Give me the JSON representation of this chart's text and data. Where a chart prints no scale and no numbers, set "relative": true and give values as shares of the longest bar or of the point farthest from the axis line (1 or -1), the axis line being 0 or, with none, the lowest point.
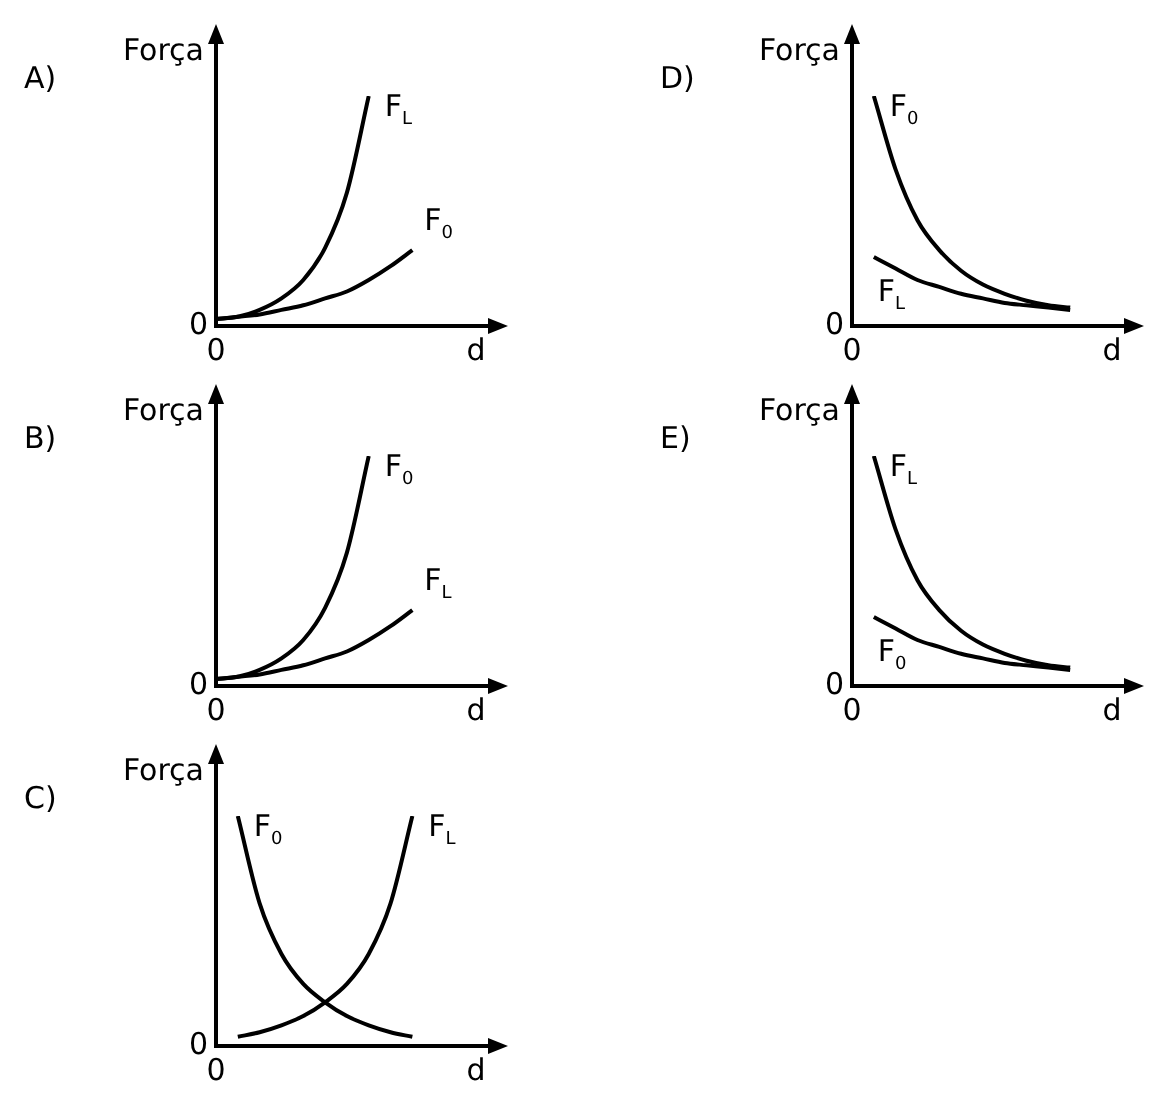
{
  "chart_data": [
    {
      "type": "line",
      "title": "A)",
      "ylabel": "Força",
      "xlabel": "d",
      "annotations": [
        "0",
        "0"
      ],
      "relative": true,
      "legend": false,
      "grid": false,
      "marker": "none",
      "categories": [
        null,
        null,
        null,
        null,
        null,
        null,
        null,
        null,
        null,
        null,
        null,
        null
      ],
      "series": [
        {
          "name": "F$_{L}$",
          "color": "#000000",
          "values": [
            0.03,
            0.04,
            0.07,
            0.12,
            0.2,
            0.34,
            0.58,
            1.0,
            null,
            null,
            null,
            null
          ]
        },
        {
          "name": "F$_{0}$",
          "color": "#000000",
          "values": [
            0.03,
            0.04,
            0.05,
            0.07,
            0.09,
            0.12,
            0.15,
            0.2,
            0.26,
            0.33,
            null,
            null
          ]
        }
      ]
    },
    {
      "type": "line",
      "title": "D)",
      "ylabel": "Força",
      "xlabel": "d",
      "annotations": [
        "0",
        "0"
      ],
      "relative": true,
      "legend": false,
      "grid": false,
      "marker": "none",
      "categories": [
        null,
        null,
        null,
        null,
        null,
        null,
        null,
        null,
        null,
        null,
        null,
        null
      ],
      "series": [
        {
          "name": "F$_{0}$",
          "color": "#000000",
          "values": [
            null,
            1.0,
            0.68,
            0.46,
            0.33,
            0.24,
            0.18,
            0.14,
            0.11,
            0.09,
            0.08,
            null
          ]
        },
        {
          "name": "F$_{L}$",
          "color": "#000000",
          "values": [
            null,
            0.3,
            0.25,
            0.2,
            0.17,
            0.14,
            0.12,
            0.1,
            0.09,
            0.08,
            0.07,
            null
          ]
        }
      ]
    },
    {
      "type": "line",
      "title": "B)",
      "ylabel": "Força",
      "xlabel": "d",
      "annotations": [
        "0",
        "0"
      ],
      "relative": true,
      "legend": false,
      "grid": false,
      "marker": "none",
      "categories": [
        null,
        null,
        null,
        null,
        null,
        null,
        null,
        null,
        null,
        null,
        null,
        null
      ],
      "series": [
        {
          "name": "F$_{0}$",
          "color": "#000000",
          "values": [
            0.03,
            0.04,
            0.07,
            0.12,
            0.2,
            0.34,
            0.58,
            1.0,
            null,
            null,
            null,
            null
          ]
        },
        {
          "name": "F$_{L}$",
          "color": "#000000",
          "values": [
            0.03,
            0.04,
            0.05,
            0.07,
            0.09,
            0.12,
            0.15,
            0.2,
            0.26,
            0.33,
            null,
            null
          ]
        }
      ]
    },
    {
      "type": "line",
      "title": "E)",
      "ylabel": "Força",
      "xlabel": "d",
      "annotations": [
        "0",
        "0"
      ],
      "relative": true,
      "legend": false,
      "grid": false,
      "marker": "none",
      "categories": [
        null,
        null,
        null,
        null,
        null,
        null,
        null,
        null,
        null,
        null,
        null,
        null
      ],
      "series": [
        {
          "name": "F$_{L}$",
          "color": "#000000",
          "values": [
            null,
            1.0,
            0.68,
            0.46,
            0.33,
            0.24,
            0.18,
            0.14,
            0.11,
            0.09,
            0.08,
            null
          ]
        },
        {
          "name": "F$_{0}$",
          "color": "#000000",
          "values": [
            null,
            0.3,
            0.25,
            0.2,
            0.17,
            0.14,
            0.12,
            0.1,
            0.09,
            0.08,
            0.07,
            null
          ]
        }
      ]
    },
    {
      "type": "line",
      "title": "C)",
      "ylabel": "Força",
      "xlabel": "d",
      "annotations": [
        "0",
        "0"
      ],
      "relative": true,
      "legend": false,
      "grid": false,
      "marker": "none",
      "categories": [
        null,
        null,
        null,
        null,
        null,
        null,
        null,
        null,
        null,
        null,
        null,
        null
      ],
      "series": [
        {
          "name": "F$_{0}$",
          "color": "#000000",
          "values": [
            null,
            1.0,
            0.62,
            0.4,
            0.27,
            0.19,
            0.13,
            0.09,
            0.06,
            0.04,
            null,
            null
          ]
        },
        {
          "name": "F$_{L}$",
          "color": "#000000",
          "values": [
            null,
            0.04,
            0.06,
            0.09,
            0.13,
            0.19,
            0.27,
            0.4,
            0.62,
            1.0,
            null,
            null
          ]
        }
      ]
    }
  ]
}
